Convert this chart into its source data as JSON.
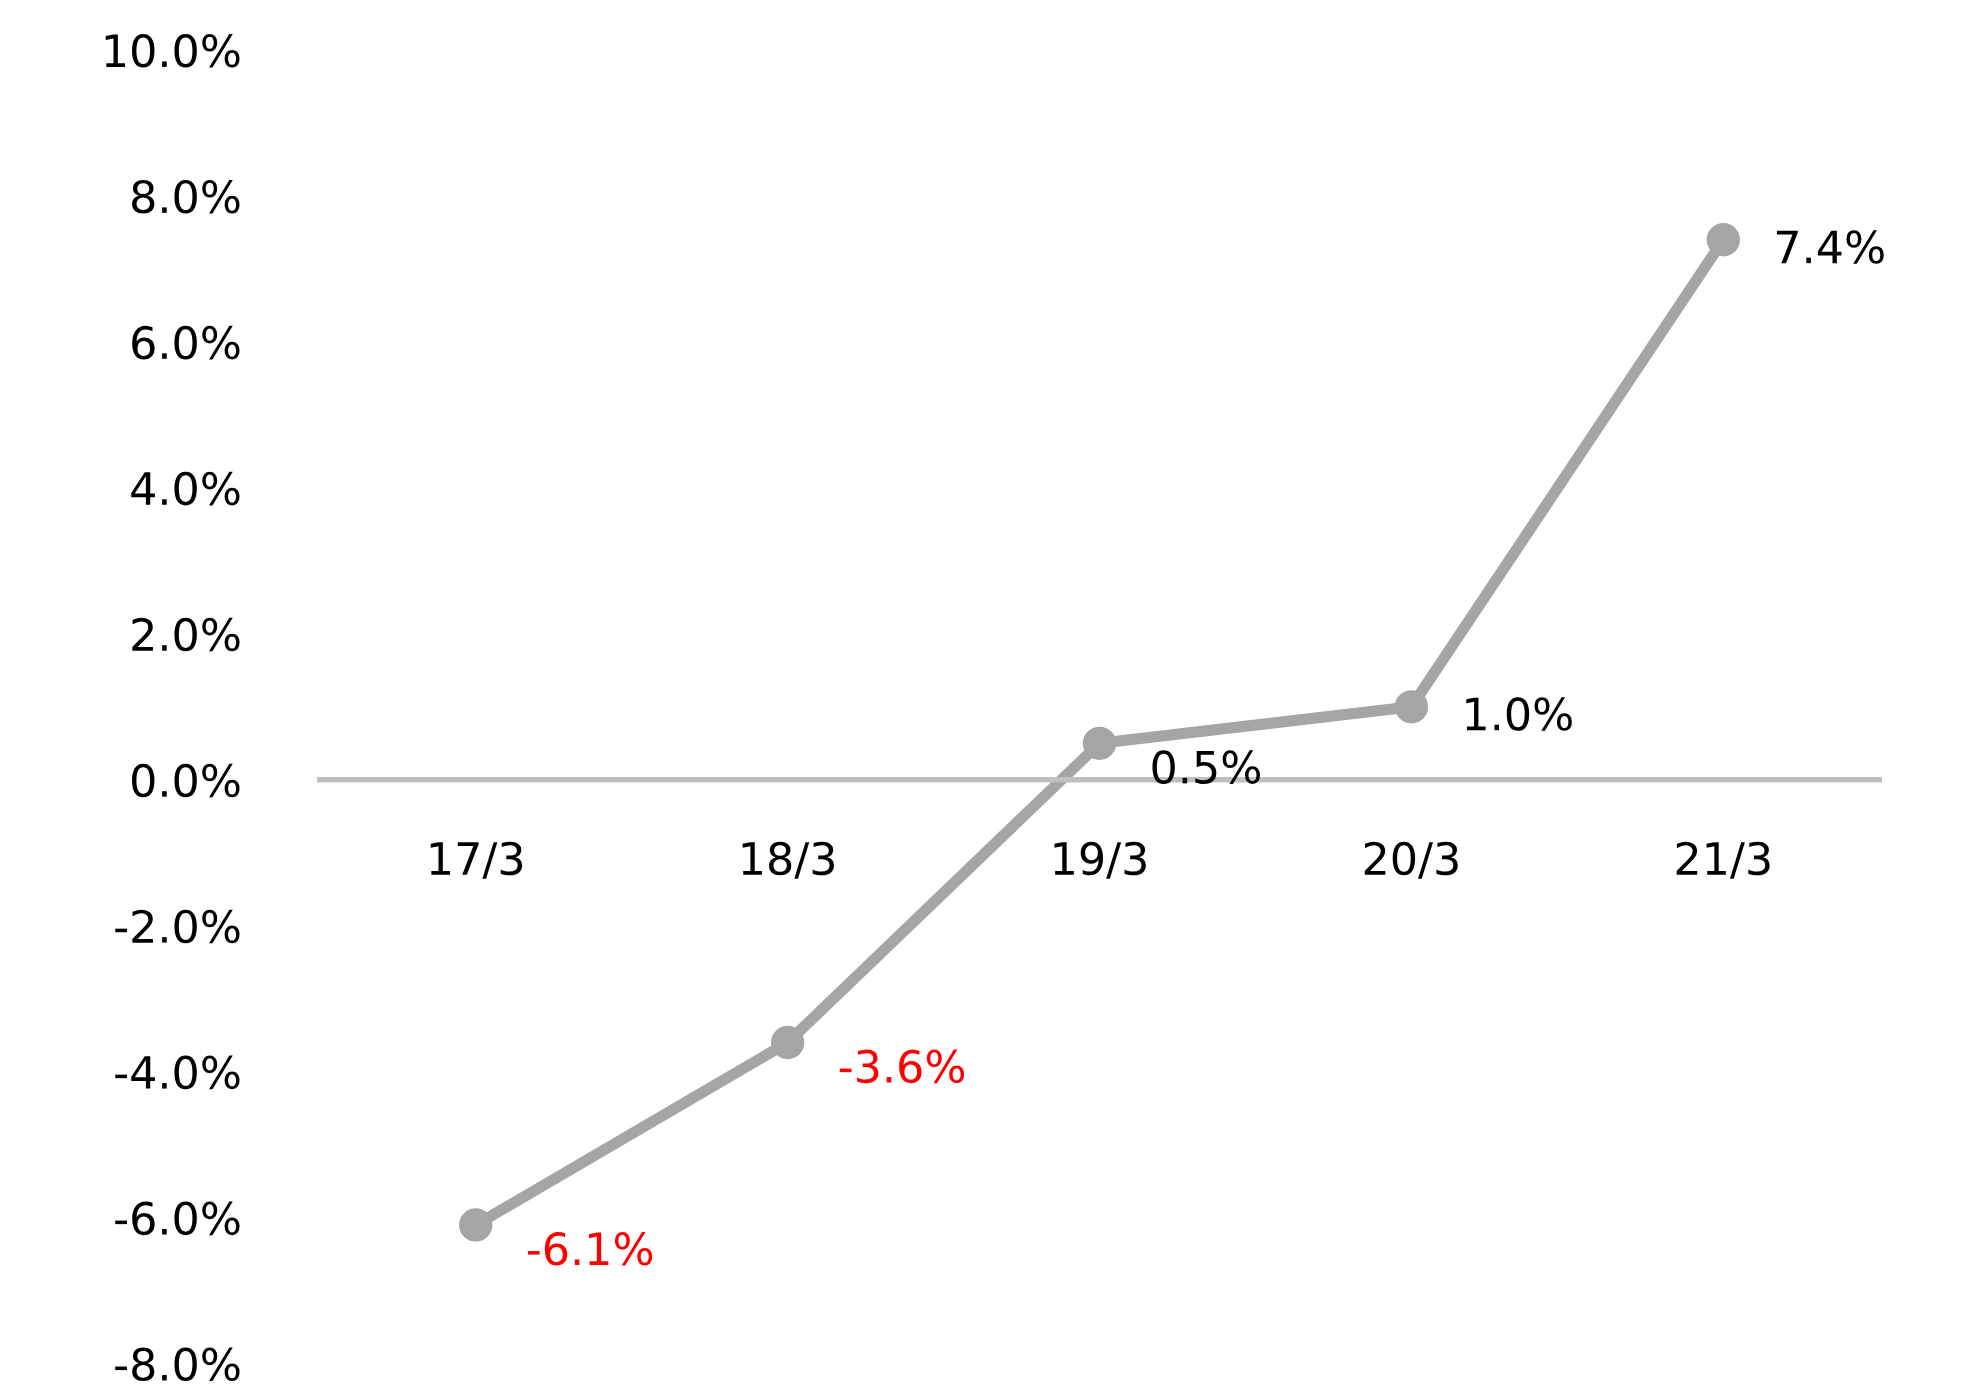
{
  "chart_data": {
    "type": "line",
    "categories": [
      "17/3",
      "18/3",
      "19/3",
      "20/3",
      "21/3"
    ],
    "series": [
      {
        "color": "#a5a5a5",
        "values": [
          -6.1,
          -3.6,
          0.5,
          1.0,
          7.4
        ],
        "value_labels": [
          "-6.1%",
          "-3.6%",
          "0.5%",
          "1.0%",
          "7.4%"
        ]
      }
    ],
    "ylim": [
      -8,
      10
    ],
    "yticks": [
      {
        "value": -8,
        "label": "-8.0%"
      },
      {
        "value": -6,
        "label": "-6.0%"
      },
      {
        "value": -4,
        "label": "-4.0%"
      },
      {
        "value": -2,
        "label": "-2.0%"
      },
      {
        "value": 0,
        "label": "0.0%"
      },
      {
        "value": 2,
        "label": "2.0%"
      },
      {
        "value": 4,
        "label": "4.0%"
      },
      {
        "value": 6,
        "label": "6.0%"
      },
      {
        "value": 8,
        "label": "8.0%"
      },
      {
        "value": 10,
        "label": "10.0%"
      }
    ],
    "marker": "circle",
    "line_style": "solid"
  }
}
